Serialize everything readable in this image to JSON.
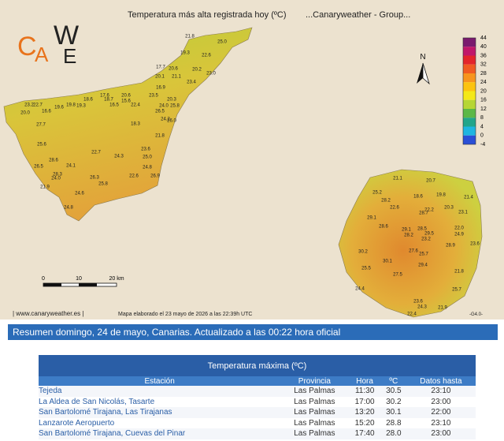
{
  "map": {
    "title": "Temperatura más alta registrada hoy (ºC)",
    "group": "...Canaryweather - Group...",
    "logo": [
      "C",
      "A",
      "W",
      "E"
    ],
    "north": "N",
    "scale": [
      "0",
      "10",
      "20 km"
    ],
    "legend": {
      "ticks": [
        "44",
        "40",
        "36",
        "32",
        "28",
        "24",
        "20",
        "16",
        "12",
        "8",
        "4",
        "0",
        "-4"
      ],
      "colors": [
        "#7a1a6e",
        "#c0176a",
        "#e3242b",
        "#f05a22",
        "#f7941d",
        "#fcc30f",
        "#f4e817",
        "#b6d634",
        "#5cb847",
        "#22a58a",
        "#1fb5e0",
        "#2a4fd6"
      ]
    },
    "tenerife_labels": [
      "21.8",
      "19.3",
      "22.6",
      "25.0",
      "17.7",
      "20.6",
      "20.2",
      "23.0",
      "20.1",
      "21.1",
      "23.4",
      "16.9",
      "17.6",
      "18.6",
      "20.6",
      "18.7",
      "15.6",
      "16.5",
      "22.4",
      "23.5",
      "20.3",
      "23.2",
      "22.7",
      "20.0",
      "16.6",
      "19.8",
      "19.6",
      "19.3",
      "24.0",
      "25.8",
      "26.5",
      "24.2",
      "26.0",
      "18.3",
      "27.7",
      "21.8",
      "25.6",
      "23.6",
      "22.7",
      "24.3",
      "25.0",
      "28.6",
      "26.5",
      "24.1",
      "24.8",
      "28.3",
      "24.0",
      "26.3",
      "22.6",
      "26.9",
      "21.9",
      "25.8",
      "24.6",
      "24.8"
    ],
    "gran_canaria_labels": [
      "21.1",
      "20.7",
      "25.2",
      "28.2",
      "18.6",
      "19.8",
      "21.4",
      "20.3",
      "22.2",
      "22.6",
      "28.7",
      "23.1",
      "29.1",
      "28.6",
      "28.5",
      "29.1",
      "22.0",
      "28.2",
      "29.5",
      "23.2",
      "24.9",
      "28.9",
      "23.6",
      "27.6",
      "25.7",
      "30.2",
      "30.1",
      "29.4",
      "25.5",
      "27.5",
      "21.8",
      "24.4",
      "25.7",
      "23.6",
      "24.3",
      "21.9",
      "22.4"
    ],
    "footer": "| www.canaryweather.es |",
    "made": "Mapa elaborado el 23 mayo de 2026 a las 22:39h UTC",
    "version": "-G4.0-"
  },
  "banner": "Resumen domingo, 24 de mayo, Canarias. Actualizado a las 00:22 hora oficial",
  "table": {
    "title": "Temperatura máxima (ºC)",
    "columns": [
      "Estación",
      "Provincia",
      "Hora",
      "ºC",
      "Datos hasta"
    ],
    "rows": [
      [
        "Tejeda",
        "Las Palmas",
        "11:30",
        "30.5",
        "23:10"
      ],
      [
        "La Aldea de San Nicolás, Tasarte",
        "Las Palmas",
        "17:00",
        "30.2",
        "23:00"
      ],
      [
        "San Bartolomé Tirajana, Las Tirajanas",
        "Las Palmas",
        "13:20",
        "30.1",
        "22:00"
      ],
      [
        "Lanzarote Aeropuerto",
        "Las Palmas",
        "15:20",
        "28.8",
        "23:10"
      ],
      [
        "San Bartolomé Tirajana, Cuevas del Pinar",
        "Las Palmas",
        "17:40",
        "28.0",
        "23:00"
      ]
    ]
  }
}
